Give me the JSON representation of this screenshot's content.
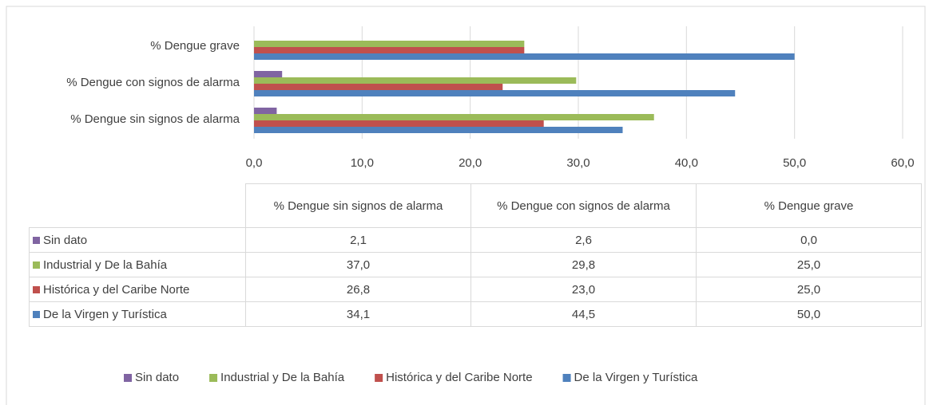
{
  "chart_data": {
    "type": "bar",
    "orientation": "horizontal",
    "categories": [
      "% Dengue sin signos de alarma",
      "% Dengue con signos de alarma",
      "% Dengue grave"
    ],
    "series": [
      {
        "name": "Sin dato",
        "color": "#8064a2",
        "values": [
          2.1,
          2.6,
          0.0
        ],
        "value_labels": [
          "2,1",
          "2,6",
          "0,0"
        ]
      },
      {
        "name": "Industrial y De la Bahía",
        "color": "#9bbb59",
        "values": [
          37.0,
          29.8,
          25.0
        ],
        "value_labels": [
          "37,0",
          "29,8",
          "25,0"
        ]
      },
      {
        "name": "Histórica y del Caribe Norte",
        "color": "#c0504d",
        "values": [
          26.8,
          23.0,
          25.0
        ],
        "value_labels": [
          "26,8",
          "23,0",
          "25,0"
        ]
      },
      {
        "name": "De la Virgen y Turística",
        "color": "#4f81bd",
        "values": [
          34.1,
          44.5,
          50.0
        ],
        "value_labels": [
          "34,1",
          "44,5",
          "50,0"
        ]
      }
    ],
    "xlim": [
      0,
      60
    ],
    "xticks": [
      {
        "value": 0,
        "label": "0,0"
      },
      {
        "value": 10,
        "label": "10,0"
      },
      {
        "value": 20,
        "label": "20,0"
      },
      {
        "value": 30,
        "label": "30,0"
      },
      {
        "value": 40,
        "label": "40,0"
      },
      {
        "value": 50,
        "label": "50,0"
      },
      {
        "value": 60,
        "label": "60,0"
      }
    ],
    "grid": true,
    "legend": "bottom",
    "data_table": true
  }
}
